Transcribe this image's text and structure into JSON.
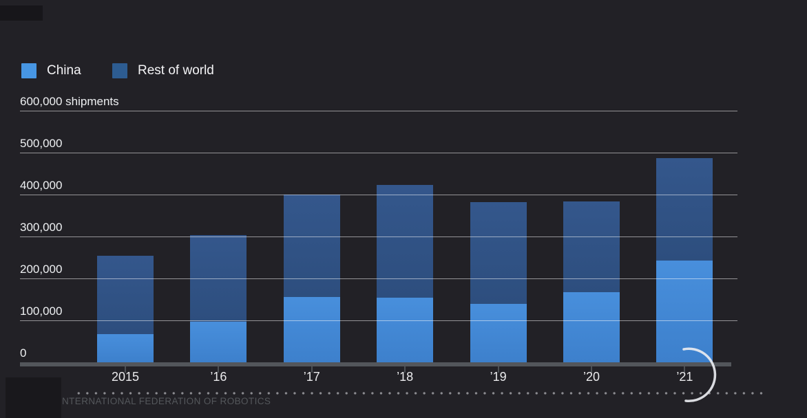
{
  "legend": {
    "items": [
      {
        "label": "China",
        "color": "#4796e3"
      },
      {
        "label": "Rest of world",
        "color": "#2d5c91"
      }
    ]
  },
  "chart_data": {
    "type": "bar",
    "stacked": true,
    "unit_label": "600,000 shipments",
    "categories": [
      "2015",
      "’16",
      "’17",
      "’18",
      "’19",
      "’20",
      "’21"
    ],
    "series": [
      {
        "name": "China",
        "color": "#4287d3",
        "color_top": "#488fdc",
        "color_bottom": "#3d80cc",
        "values": [
          68000,
          96000,
          156000,
          154000,
          140000,
          168000,
          243000
        ]
      },
      {
        "name": "Rest of world",
        "color": "#2f5286",
        "color_top": "#34578c",
        "color_bottom": "#2d4e7e",
        "values": [
          186000,
          208000,
          244000,
          269000,
          242000,
          216000,
          244000
        ]
      }
    ],
    "totals": [
      254000,
      304000,
      400000,
      423000,
      382000,
      384000,
      487000
    ],
    "ylim": [
      0,
      600000
    ],
    "ytick_interval": 100000,
    "ytick_labels": [
      "0",
      "100,000",
      "200,000",
      "300,000",
      "400,000",
      "500,000",
      "600,000 shipments"
    ],
    "grid": true,
    "legend_position": "top-left"
  },
  "annotations": {
    "circle_arc": {
      "shape": "hand-drawn partial circle over 2021 bar",
      "color": "#eaecf0"
    }
  },
  "source": {
    "label": "NTERNATIONAL FEDERATION OF ROBOTICS"
  }
}
